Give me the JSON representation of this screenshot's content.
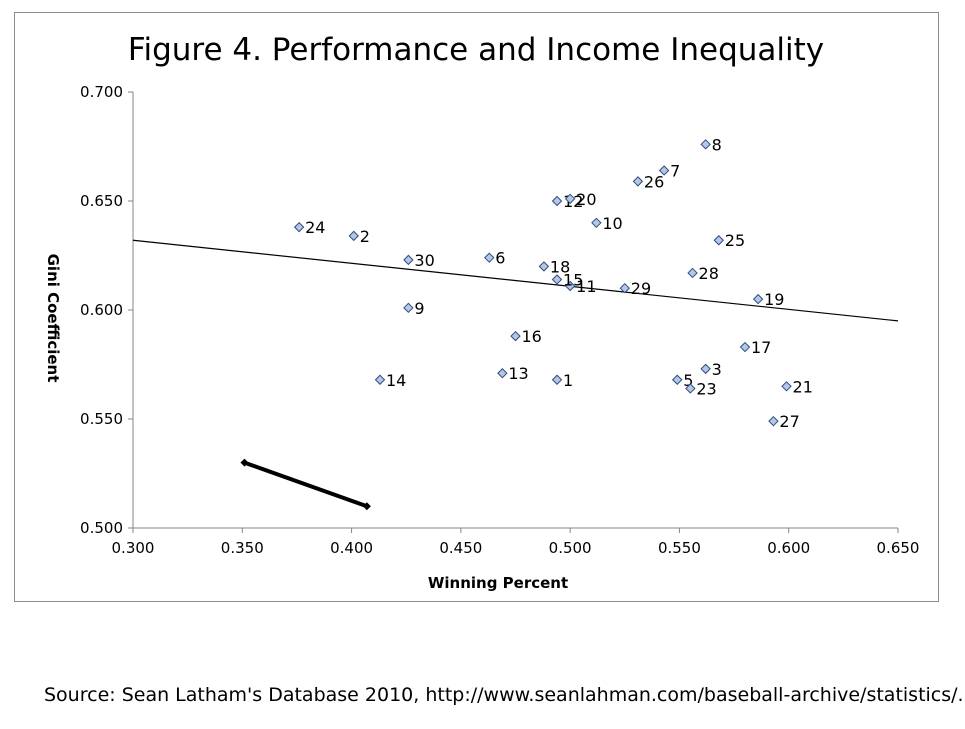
{
  "chart_data": {
    "type": "scatter",
    "title": "Figure 4. Performance and Income Inequality",
    "xlabel": "Winning Percent",
    "ylabel": "Gini Coefficient",
    "xlim": [
      0.3,
      0.65
    ],
    "ylim": [
      0.5,
      0.7
    ],
    "x_ticks": [
      "0.300",
      "0.350",
      "0.400",
      "0.450",
      "0.500",
      "0.550",
      "0.600",
      "0.650"
    ],
    "y_ticks": [
      "0.500",
      "0.550",
      "0.600",
      "0.650",
      "0.700"
    ],
    "x_tick_values": [
      0.3,
      0.35,
      0.4,
      0.45,
      0.5,
      0.55,
      0.6,
      0.65
    ],
    "y_tick_values": [
      0.5,
      0.55,
      0.6,
      0.65,
      0.7
    ],
    "grid": false,
    "marker_color": "#b4c7e7",
    "marker_stroke": "#2f4b7c",
    "points": [
      {
        "label": "1",
        "x": 0.494,
        "y": 0.568
      },
      {
        "label": "2",
        "x": 0.401,
        "y": 0.634
      },
      {
        "label": "3",
        "x": 0.562,
        "y": 0.573
      },
      {
        "label": "5",
        "x": 0.549,
        "y": 0.568
      },
      {
        "label": "6",
        "x": 0.463,
        "y": 0.624
      },
      {
        "label": "7",
        "x": 0.543,
        "y": 0.664
      },
      {
        "label": "8",
        "x": 0.562,
        "y": 0.676
      },
      {
        "label": "9",
        "x": 0.426,
        "y": 0.601
      },
      {
        "label": "10",
        "x": 0.512,
        "y": 0.64
      },
      {
        "label": "11",
        "x": 0.5,
        "y": 0.611
      },
      {
        "label": "12",
        "x": 0.494,
        "y": 0.65
      },
      {
        "label": "13",
        "x": 0.469,
        "y": 0.571
      },
      {
        "label": "14",
        "x": 0.413,
        "y": 0.568
      },
      {
        "label": "15",
        "x": 0.494,
        "y": 0.614
      },
      {
        "label": "16",
        "x": 0.475,
        "y": 0.588
      },
      {
        "label": "17",
        "x": 0.58,
        "y": 0.583
      },
      {
        "label": "18",
        "x": 0.488,
        "y": 0.62
      },
      {
        "label": "19",
        "x": 0.586,
        "y": 0.605
      },
      {
        "label": "20",
        "x": 0.5,
        "y": 0.651
      },
      {
        "label": "21",
        "x": 0.599,
        "y": 0.565
      },
      {
        "label": "23",
        "x": 0.555,
        "y": 0.564
      },
      {
        "label": "24",
        "x": 0.376,
        "y": 0.638
      },
      {
        "label": "25",
        "x": 0.568,
        "y": 0.632
      },
      {
        "label": "26",
        "x": 0.531,
        "y": 0.659
      },
      {
        "label": "27",
        "x": 0.593,
        "y": 0.549
      },
      {
        "label": "28",
        "x": 0.556,
        "y": 0.617
      },
      {
        "label": "29",
        "x": 0.525,
        "y": 0.61
      },
      {
        "label": "30",
        "x": 0.426,
        "y": 0.623
      }
    ],
    "trendline": {
      "x": [
        0.3,
        0.65
      ],
      "y": [
        0.632,
        0.595
      ]
    },
    "arrow_segment": {
      "x": [
        0.351,
        0.407
      ],
      "y": [
        0.53,
        0.51
      ]
    }
  },
  "source": "Source: Sean Latham's Database 2010, http://www.seanlahman.com/baseball-archive/statistics/."
}
